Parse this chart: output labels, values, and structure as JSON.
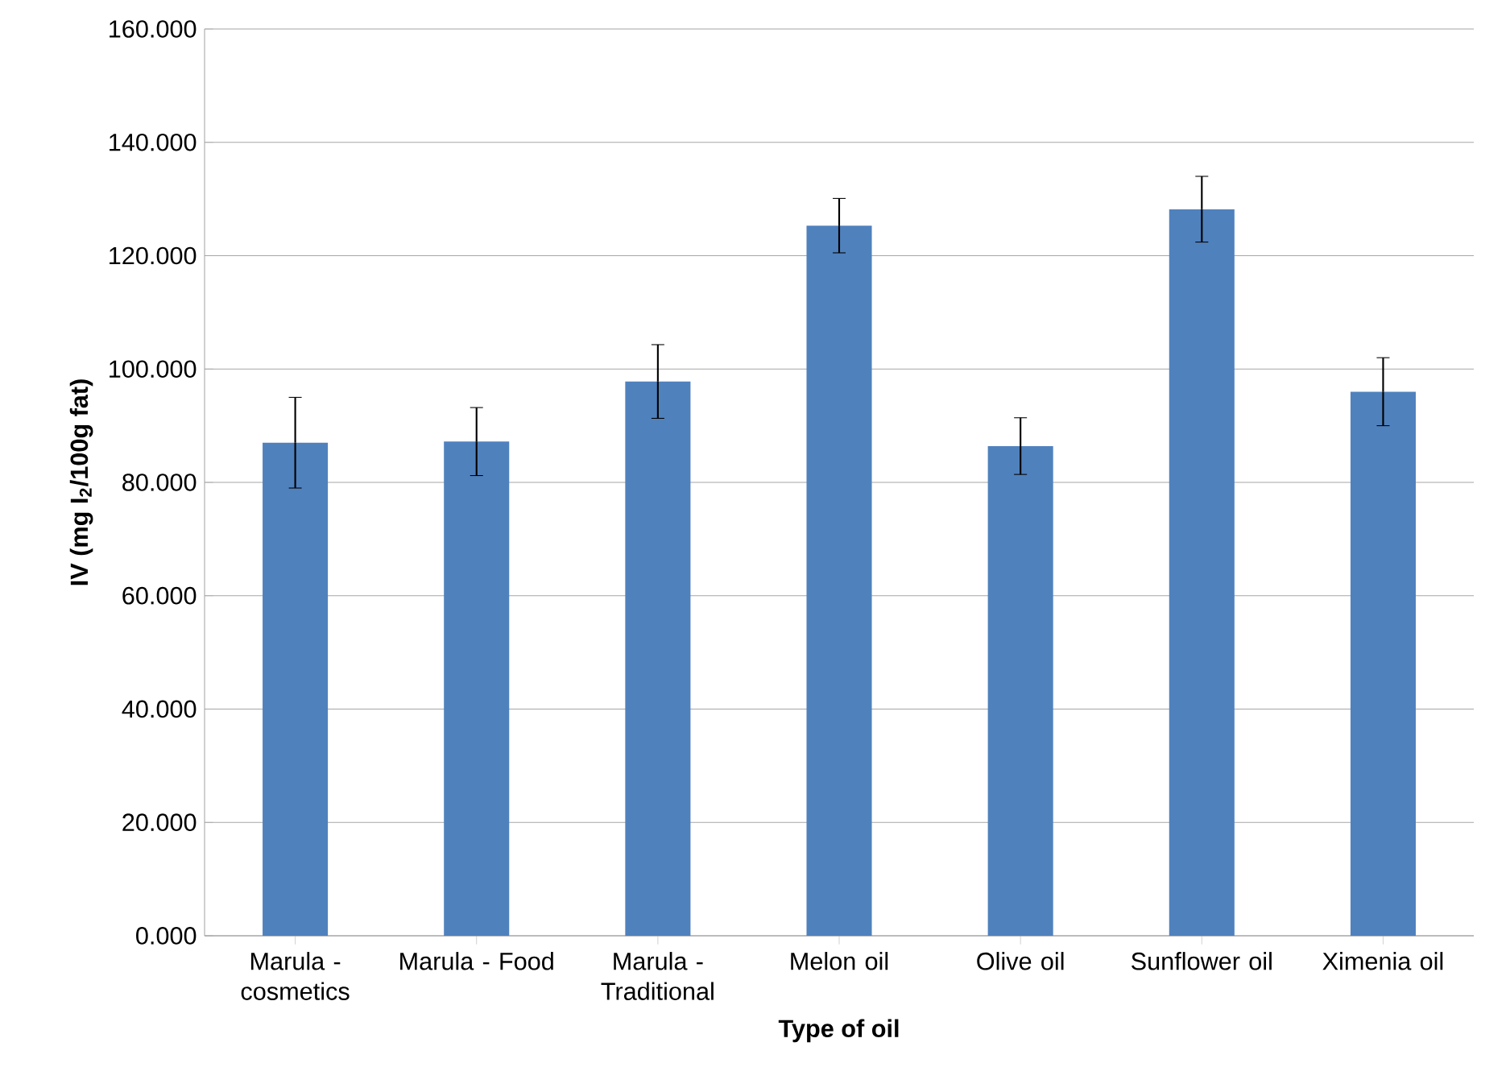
{
  "chart_data": {
    "type": "bar",
    "xlabel": "Type of oil",
    "ylabel": "IV (mg I$_{2}$/100g fat)",
    "categories": [
      "Marula - cosmetics",
      "Marula - Food",
      "Marula - Traditional",
      "Melon oil",
      "Olive oil",
      "Sunflower oil",
      "Ximenia oil"
    ],
    "values": [
      87.0,
      87.2,
      97.8,
      125.3,
      86.4,
      128.2,
      96.0
    ],
    "errors": [
      8.0,
      6.0,
      6.5,
      4.8,
      5.0,
      5.8,
      6.0
    ],
    "color": "#4f81bd",
    "ylim": [
      0,
      160
    ],
    "yticks": [
      {
        "value": 0,
        "label": "0.000"
      },
      {
        "value": 20,
        "label": "20.000"
      },
      {
        "value": 40,
        "label": "40.000"
      },
      {
        "value": 60,
        "label": "60.000"
      },
      {
        "value": 80,
        "label": "80.000"
      },
      {
        "value": 100,
        "label": "100.000"
      },
      {
        "value": 120,
        "label": "120.000"
      },
      {
        "value": 140,
        "label": "140.000"
      },
      {
        "value": 160,
        "label": "160.000"
      }
    ],
    "grid": "y"
  }
}
